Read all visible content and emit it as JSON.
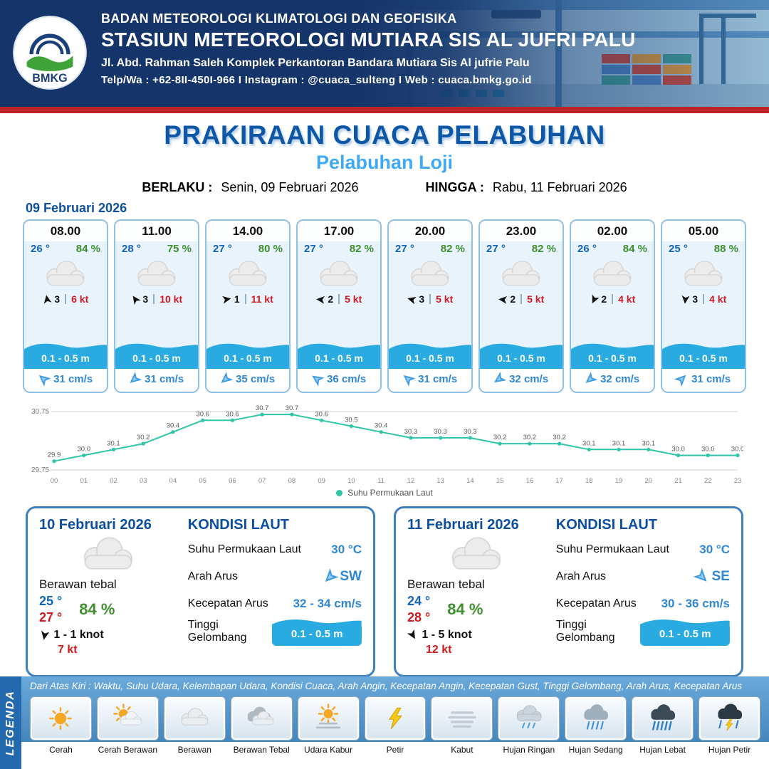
{
  "header": {
    "logo_text": "BMKG",
    "agency": "BADAN METEOROLOGI KLIMATOLOGI DAN GEOFISIKA",
    "station": "STASIUN METEOROLOGI MUTIARA SIS AL JUFRI PALU",
    "address": "Jl. Abd. Rahman Saleh Komplek Perkantoran Bandara Mutiara Sis Al jufrie Palu",
    "contact": "Telp/Wa : +62-8II-450I-966  I  Instagram : @cuaca_sulteng  I  Web : cuaca.bmkg.go.id"
  },
  "title": {
    "main": "PRAKIRAAN CUACA PELABUHAN",
    "subtitle": "Pelabuhan Loji"
  },
  "validity": {
    "valid_label": "BERLAKU :",
    "valid_value": "Senin, 09 Februari 2026",
    "until_label": "HINGGA :",
    "until_value": "Rabu, 11 Februari 2026"
  },
  "forecast_date": "09 Februari 2026",
  "hourly": [
    {
      "time": "08.00",
      "temp": "26 °",
      "humidity": "84 %",
      "wind_value": "3",
      "wind_speed": "6 kt",
      "wind_rot": -100,
      "wave": "0.1 - 0.5 m",
      "current_speed": "31 cm/s",
      "current_rot": -140
    },
    {
      "time": "11.00",
      "temp": "28 °",
      "humidity": "75 %",
      "wind_value": "3",
      "wind_speed": "10 kt",
      "wind_rot": -125,
      "wave": "0.1 - 0.5 m",
      "current_speed": "31 cm/s",
      "current_rot": 140
    },
    {
      "time": "14.00",
      "temp": "27 °",
      "humidity": "80 %",
      "wind_value": "1",
      "wind_speed": "11 kt",
      "wind_rot": -10,
      "wave": "0.1 - 0.5 m",
      "current_speed": "35 cm/s",
      "current_rot": 140
    },
    {
      "time": "17.00",
      "temp": "27 °",
      "humidity": "82 %",
      "wind_value": "2",
      "wind_speed": "5 kt",
      "wind_rot": 185,
      "wave": "0.1 - 0.5 m",
      "current_speed": "36 cm/s",
      "current_rot": -145
    },
    {
      "time": "20.00",
      "temp": "27 °",
      "humidity": "82 %",
      "wind_value": "3",
      "wind_speed": "5 kt",
      "wind_rot": 195,
      "wave": "0.1 - 0.5 m",
      "current_speed": "31 cm/s",
      "current_rot": -140
    },
    {
      "time": "23.00",
      "temp": "27 °",
      "humidity": "82 %",
      "wind_value": "2",
      "wind_speed": "5 kt",
      "wind_rot": 185,
      "wave": "0.1 - 0.5 m",
      "current_speed": "32 cm/s",
      "current_rot": 145
    },
    {
      "time": "02.00",
      "temp": "26 °",
      "humidity": "84 %",
      "wind_value": "2",
      "wind_speed": "4 kt",
      "wind_rot": 115,
      "wave": "0.1 - 0.5 m",
      "current_speed": "32 cm/s",
      "current_rot": 140
    },
    {
      "time": "05.00",
      "temp": "25 °",
      "humidity": "88 %",
      "wind_value": "3",
      "wind_speed": "4 kt",
      "wind_rot": 95,
      "wave": "0.1 - 0.5 m",
      "current_speed": "31 cm/s",
      "current_rot": -45
    }
  ],
  "chart_data": {
    "type": "line",
    "series_name": "Suhu Permukaan Laut",
    "x": [
      "00",
      "01",
      "02",
      "03",
      "04",
      "05",
      "06",
      "07",
      "08",
      "09",
      "10",
      "11",
      "12",
      "13",
      "14",
      "15",
      "16",
      "17",
      "18",
      "19",
      "20",
      "21",
      "22",
      "23"
    ],
    "values": [
      29.9,
      30.0,
      30.1,
      30.2,
      30.4,
      30.6,
      30.6,
      30.7,
      30.7,
      30.6,
      30.5,
      30.4,
      30.3,
      30.3,
      30.3,
      30.2,
      30.2,
      30.2,
      30.1,
      30.1,
      30.1,
      30.0,
      30.0,
      30.0
    ],
    "ylim": [
      29.75,
      30.75
    ],
    "yticks": [
      29.75,
      30.75
    ],
    "line_color": "#2fc5a8",
    "legend_position": "bottom",
    "grid": true
  },
  "sea_labels": {
    "title": "KONDISI LAUT",
    "sst": "Suhu Permukaan Laut",
    "direction": "Arah Arus",
    "speed": "Kecepatan Arus",
    "wave": "Tinggi Gelombang"
  },
  "daily": [
    {
      "date": "10 Februari 2026",
      "condition": "Berawan tebal",
      "temp_min": "25 °",
      "temp_max": "27 °",
      "humidity": "84 %",
      "wind_range": "1 - 1 knot",
      "wind_gust": "7 kt",
      "wind_rot": 100,
      "sea_temp": "30 °C",
      "current_dir": "SW",
      "current_rot": 135,
      "current_speed": "32 - 34 cm/s",
      "wave": "0.1 - 0.5 m"
    },
    {
      "date": "11 Februari 2026",
      "condition": "Berawan tebal",
      "temp_min": "24 °",
      "temp_max": "28 °",
      "humidity": "84 %",
      "wind_range": "1 - 5 knot",
      "wind_gust": "12 kt",
      "wind_rot": 60,
      "sea_temp": "30 °C",
      "current_dir": "SE",
      "current_rot": 45,
      "current_speed": "30 - 36 cm/s",
      "wave": "0.1 - 0.5 m"
    }
  ],
  "legend": {
    "title": "LEGENDA",
    "description": "Dari Atas Kiri : Waktu, Suhu Udara, Kelembapan Udara, Kondisi Cuaca, Arah Angin, Kecepatan Angin, Kecepatan Gust, Tinggi Gelombang, Arah Arus, Kecepatan Arus",
    "items": [
      {
        "label": "Cerah",
        "icon": "sun-icon"
      },
      {
        "label": "Cerah Berawan",
        "icon": "sun-cloud-icon"
      },
      {
        "label": "Berawan",
        "icon": "cloud-icon"
      },
      {
        "label": "Berawan Tebal",
        "icon": "thick-cloud-icon"
      },
      {
        "label": "Udara Kabur",
        "icon": "haze-icon"
      },
      {
        "label": "Petir",
        "icon": "lightning-icon"
      },
      {
        "label": "Kabut",
        "icon": "fog-icon"
      },
      {
        "label": "Hujan Ringan",
        "icon": "light-rain-icon"
      },
      {
        "label": "Hujan Sedang",
        "icon": "moderate-rain-icon"
      },
      {
        "label": "Hujan Lebat",
        "icon": "heavy-rain-icon"
      },
      {
        "label": "Hujan Petir",
        "icon": "thunderstorm-icon"
      }
    ]
  }
}
